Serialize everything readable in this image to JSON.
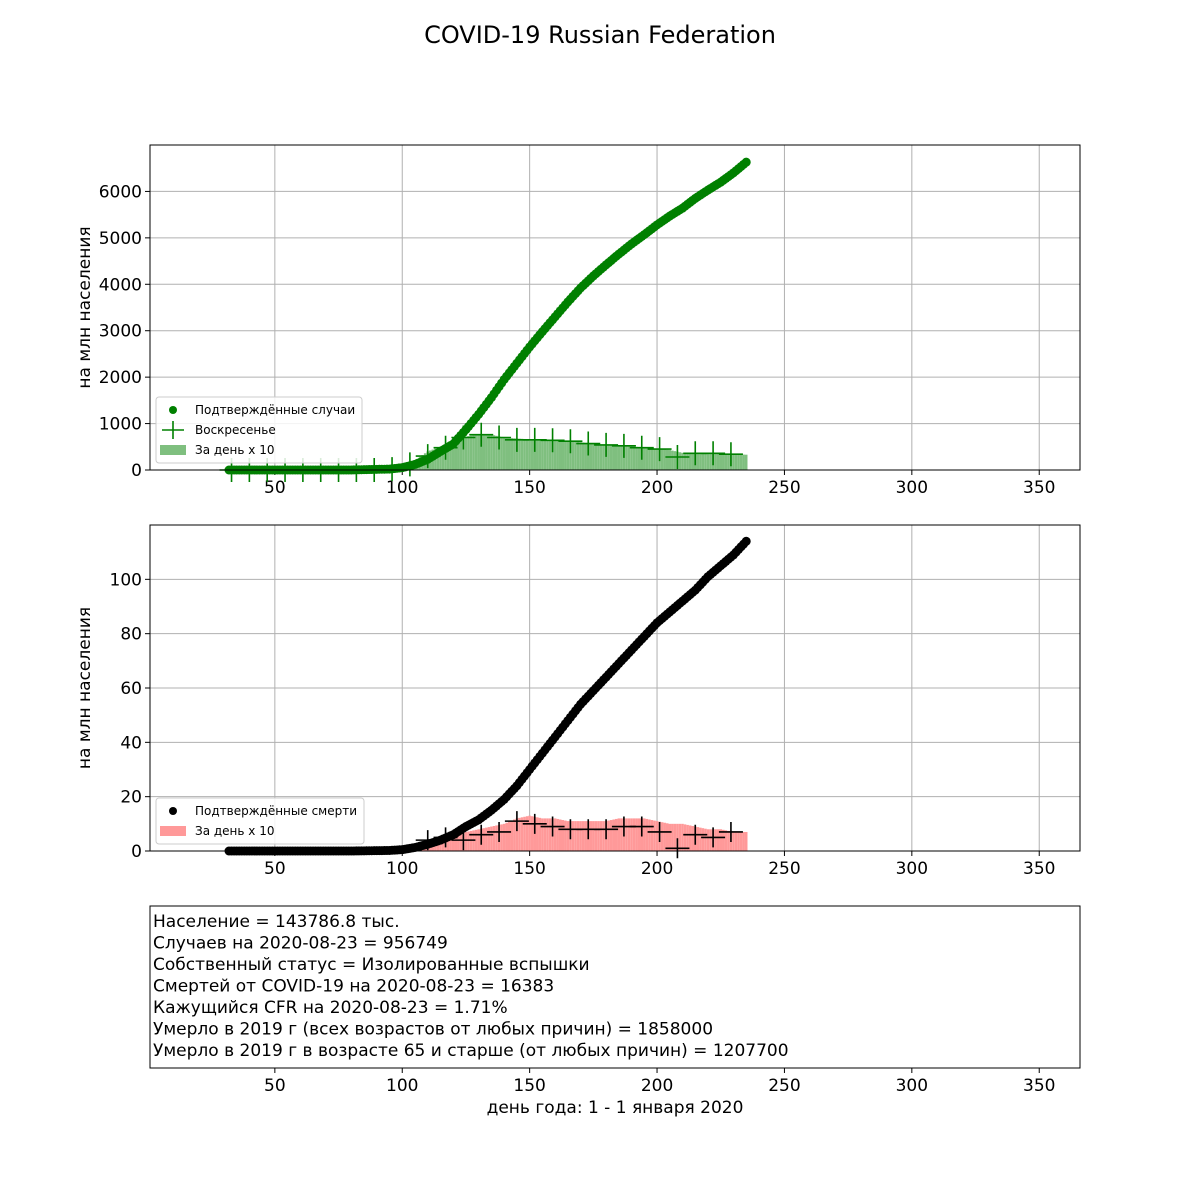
{
  "title": "COVID-19 Russian Federation",
  "colors": {
    "cases": "#008000",
    "cases_bar": "#7fbf7f",
    "deaths": "#000000",
    "deaths_bar": "#ff9999",
    "grid": "#b0b0b0"
  },
  "chart_data": [
    {
      "type": "scatter",
      "title": "",
      "ylabel": "на млн населения",
      "xlim": [
        1,
        366
      ],
      "ylim": [
        0,
        7000
      ],
      "xticks": [
        50,
        100,
        150,
        200,
        250,
        300,
        350
      ],
      "yticks": [
        0,
        1000,
        2000,
        3000,
        4000,
        5000,
        6000
      ],
      "legend_position": "lower-left",
      "legend": [
        {
          "label": "Подтверждённые случаи",
          "kind": "dot"
        },
        {
          "label": "Воскресенье",
          "kind": "cross"
        },
        {
          "label": "За день x 10",
          "kind": "bar"
        }
      ],
      "series": [
        {
          "name": "Подтверждённые случаи",
          "x": [
            32,
            60,
            80,
            95,
            100,
            105,
            110,
            115,
            120,
            125,
            130,
            135,
            140,
            145,
            150,
            155,
            160,
            165,
            170,
            175,
            180,
            185,
            190,
            195,
            200,
            205,
            210,
            215,
            220,
            225,
            230,
            235
          ],
          "y": [
            0,
            0,
            1,
            20,
            50,
            120,
            230,
            400,
            560,
            870,
            1200,
            1560,
            1950,
            2300,
            2650,
            2980,
            3300,
            3620,
            3920,
            4180,
            4420,
            4650,
            4870,
            5070,
            5280,
            5470,
            5640,
            5850,
            6030,
            6200,
            6400,
            6630
          ]
        },
        {
          "name": "За день x 10",
          "x": [
            95,
            100,
            105,
            110,
            115,
            120,
            125,
            130,
            135,
            140,
            145,
            150,
            155,
            160,
            165,
            170,
            175,
            180,
            185,
            190,
            195,
            200,
            205,
            210,
            215,
            220,
            225,
            230,
            235
          ],
          "y": [
            50,
            100,
            200,
            400,
            500,
            620,
            720,
            770,
            760,
            700,
            680,
            660,
            650,
            640,
            620,
            600,
            560,
            540,
            530,
            510,
            480,
            460,
            430,
            370,
            360,
            350,
            350,
            340,
            330
          ]
        },
        {
          "name": "Воскресенье",
          "x": [
            33,
            40,
            47,
            54,
            61,
            68,
            75,
            82,
            89,
            96,
            103,
            110,
            117,
            124,
            131,
            138,
            145,
            152,
            159,
            166,
            173,
            180,
            187,
            194,
            201,
            208,
            215,
            222,
            229
          ],
          "y": [
            0,
            0,
            0,
            0,
            0,
            0,
            0,
            0,
            0,
            20,
            120,
            300,
            480,
            700,
            760,
            700,
            650,
            650,
            640,
            620,
            570,
            540,
            520,
            480,
            450,
            280,
            360,
            360,
            340
          ]
        }
      ]
    },
    {
      "type": "scatter",
      "title": "",
      "ylabel": "на млн населения",
      "xlim": [
        1,
        366
      ],
      "ylim": [
        0,
        120
      ],
      "xticks": [
        50,
        100,
        150,
        200,
        250,
        300,
        350
      ],
      "yticks": [
        0,
        20,
        40,
        60,
        80,
        100
      ],
      "legend_position": "lower-left",
      "legend": [
        {
          "label": "Подтверждённые смерти",
          "kind": "dot"
        },
        {
          "label": "За день x 10",
          "kind": "bar"
        }
      ],
      "series": [
        {
          "name": "Подтверждённые смерти",
          "x": [
            32,
            60,
            80,
            95,
            100,
            105,
            110,
            115,
            120,
            125,
            130,
            135,
            140,
            145,
            150,
            155,
            160,
            165,
            170,
            175,
            180,
            185,
            190,
            195,
            200,
            205,
            210,
            215,
            220,
            225,
            230,
            235
          ],
          "y": [
            0,
            0,
            0,
            0.2,
            0.5,
            1.3,
            2.5,
            4,
            6,
            9,
            11.5,
            15,
            19,
            24,
            30,
            36,
            42,
            48,
            54,
            59,
            64,
            69,
            74,
            79,
            84,
            88,
            92,
            96,
            101,
            105,
            109,
            114
          ]
        },
        {
          "name": "За день x 10",
          "x": [
            100,
            105,
            110,
            115,
            120,
            125,
            130,
            135,
            140,
            145,
            150,
            155,
            160,
            165,
            170,
            175,
            180,
            185,
            190,
            195,
            200,
            205,
            210,
            215,
            220,
            225,
            230,
            235
          ],
          "y": [
            1,
            2,
            3,
            5,
            6,
            7,
            8,
            9,
            10,
            12,
            13,
            12,
            12,
            11,
            11,
            11,
            11,
            12,
            12,
            12,
            11,
            10,
            10,
            9,
            8,
            8,
            7,
            7
          ]
        },
        {
          "name": "Воскресенье",
          "x": [
            110,
            117,
            124,
            131,
            138,
            145,
            152,
            159,
            166,
            173,
            180,
            187,
            194,
            201,
            208,
            215,
            222,
            229
          ],
          "y": [
            4,
            5,
            4,
            6,
            7,
            11,
            10,
            9,
            8,
            8,
            8,
            9,
            9,
            7,
            1,
            6,
            5,
            7
          ]
        }
      ]
    },
    {
      "type": "table",
      "xlabel": "день года: 1 - 1 января 2020",
      "xticks": [
        50,
        100,
        150,
        200,
        250,
        300,
        350
      ],
      "lines": [
        "Население = 143786.8 тыс.",
        "Случаев на 2020-08-23 = 956749",
        "Собственный статус = Изолированные вспышки",
        "Смертей от COVID-19 на 2020-08-23 = 16383",
        "Кажущийся CFR на 2020-08-23 = 1.71%",
        "Умерло в 2019 г (всех возрастов от любых причин) = 1858000",
        "Умерло в 2019 г в возрасте 65 и старше (от любых причин) = 1207700"
      ]
    }
  ]
}
